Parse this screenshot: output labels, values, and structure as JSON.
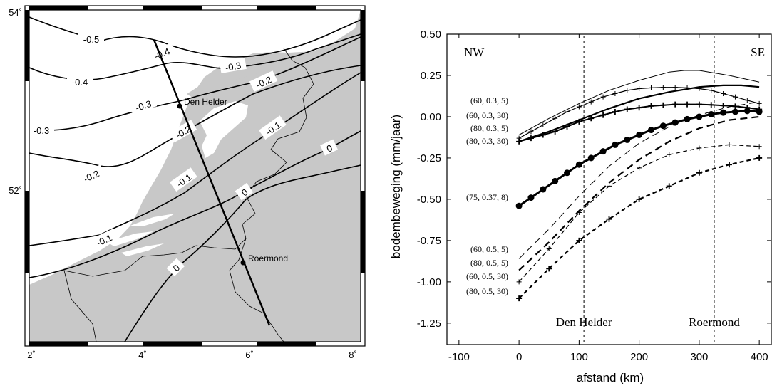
{
  "colors": {
    "land": "#c8c8c8",
    "sea": "#ffffff",
    "ink": "#000000"
  },
  "map": {
    "lat_labels": [
      "54˚",
      "52˚"
    ],
    "lon_labels": [
      "2˚",
      "4˚",
      "6˚",
      "8˚"
    ],
    "contours": [
      {
        "label": "-0.5",
        "value": -0.5
      },
      {
        "label": "-0.4",
        "value": -0.4
      },
      {
        "label": "-0.4",
        "value": -0.4
      },
      {
        "label": "-0.3",
        "value": -0.3
      },
      {
        "label": "-0.3",
        "value": -0.3
      },
      {
        "label": "-0.3",
        "value": -0.3
      },
      {
        "label": "-0.2",
        "value": -0.2
      },
      {
        "label": "-0.2",
        "value": -0.2
      },
      {
        "label": "-0.2",
        "value": -0.2
      },
      {
        "label": "-0.1",
        "value": -0.1
      },
      {
        "label": "-0.1",
        "value": -0.1
      },
      {
        "label": "-0.1",
        "value": -0.1
      },
      {
        "label": "0",
        "value": 0
      },
      {
        "label": "0",
        "value": 0
      },
      {
        "label": "0",
        "value": 0
      }
    ],
    "cities": [
      {
        "name": "Den Helder",
        "lon": 4.75,
        "lat": 52.95
      },
      {
        "name": "Roermond",
        "lon": 5.98,
        "lat": 51.19
      }
    ],
    "profile": {
      "start": {
        "lon": 4.4,
        "lat": 53.85
      },
      "end": {
        "lon": 6.4,
        "lat": 50.8
      }
    }
  },
  "chart_data": {
    "type": "line",
    "title": "",
    "xlabel": "afstand (km)",
    "ylabel": "bodembeweging (mm/jaar)",
    "xlim": [
      -120,
      420
    ],
    "ylim": [
      -1.38,
      0.5
    ],
    "xticks": [
      -100,
      0,
      100,
      200,
      300,
      400
    ],
    "yticks": [
      0.5,
      0.25,
      0.0,
      -0.25,
      -0.5,
      -0.75,
      -1.0,
      -1.25
    ],
    "xtick_labels": [
      "-100",
      "0",
      "100",
      "200",
      "300",
      "400"
    ],
    "ytick_labels": [
      "0.50",
      "0.25",
      "0.00",
      "-0.25",
      "-0.50",
      "-0.75",
      "-1.00",
      "-1.25"
    ],
    "direction_labels": {
      "left": "NW",
      "right": "SE"
    },
    "vertical_markers": [
      {
        "x": 108,
        "label": "Den Helder"
      },
      {
        "x": 325,
        "label": "Roermond"
      }
    ],
    "series": [
      {
        "name": "(60, 0.3, 5)",
        "style": "thin",
        "x": [
          0,
          50,
          100,
          150,
          200,
          250,
          275,
          300,
          350,
          400
        ],
        "y": [
          -0.11,
          -0.01,
          0.08,
          0.16,
          0.22,
          0.27,
          0.28,
          0.28,
          0.25,
          0.21
        ]
      },
      {
        "name": "(60, 0.3, 30)",
        "style": "plus",
        "x": [
          0,
          20,
          40,
          60,
          80,
          100,
          120,
          140,
          160,
          180,
          200,
          220,
          240,
          260,
          280,
          300,
          320,
          340,
          360,
          380,
          400
        ],
        "y": [
          -0.13,
          -0.09,
          -0.05,
          -0.01,
          0.03,
          0.06,
          0.09,
          0.12,
          0.14,
          0.16,
          0.17,
          0.175,
          0.178,
          0.178,
          0.175,
          0.17,
          0.16,
          0.14,
          0.12,
          0.1,
          0.08
        ]
      },
      {
        "name": "(80, 0.3, 5)",
        "style": "thick",
        "x": [
          0,
          50,
          100,
          150,
          200,
          250,
          300,
          340,
          370,
          400
        ],
        "y": [
          -0.15,
          -0.09,
          -0.02,
          0.05,
          0.11,
          0.15,
          0.18,
          0.19,
          0.19,
          0.18
        ]
      },
      {
        "name": "(80, 0.3, 30)",
        "style": "plus-bold",
        "x": [
          0,
          20,
          40,
          60,
          80,
          100,
          120,
          140,
          160,
          180,
          200,
          220,
          240,
          260,
          280,
          300,
          320,
          340,
          360,
          380,
          400
        ],
        "y": [
          -0.15,
          -0.13,
          -0.11,
          -0.09,
          -0.06,
          -0.03,
          -0.01,
          0.01,
          0.03,
          0.045,
          0.055,
          0.065,
          0.07,
          0.075,
          0.075,
          0.075,
          0.072,
          0.068,
          0.063,
          0.055,
          0.045
        ]
      },
      {
        "name": "(75, 0.37, 8)",
        "style": "dots",
        "x": [
          0,
          20,
          40,
          60,
          80,
          100,
          120,
          140,
          160,
          180,
          200,
          220,
          240,
          260,
          280,
          300,
          320,
          340,
          360,
          380,
          400
        ],
        "y": [
          -0.54,
          -0.49,
          -0.44,
          -0.39,
          -0.34,
          -0.29,
          -0.25,
          -0.21,
          -0.17,
          -0.14,
          -0.11,
          -0.08,
          -0.055,
          -0.035,
          -0.015,
          0.0,
          0.015,
          0.025,
          0.03,
          0.035,
          0.03
        ]
      },
      {
        "name": "(60, 0.5, 5)",
        "style": "dash-thin",
        "x": [
          0,
          50,
          100,
          150,
          200,
          250,
          300,
          350,
          400
        ],
        "y": [
          -0.86,
          -0.68,
          -0.48,
          -0.3,
          -0.16,
          -0.06,
          0.01,
          0.06,
          0.09
        ]
      },
      {
        "name": "(80, 0.5, 5)",
        "style": "dash-thick",
        "x": [
          0,
          50,
          100,
          150,
          200,
          250,
          300,
          350,
          400
        ],
        "y": [
          -0.93,
          -0.76,
          -0.57,
          -0.4,
          -0.26,
          -0.15,
          -0.07,
          -0.02,
          0.0
        ]
      },
      {
        "name": "(60, 0.5, 30)",
        "style": "dash-plus",
        "x": [
          0,
          50,
          100,
          150,
          200,
          250,
          300,
          350,
          400
        ],
        "y": [
          -1.0,
          -0.8,
          -0.58,
          -0.42,
          -0.31,
          -0.23,
          -0.19,
          -0.17,
          -0.18
        ]
      },
      {
        "name": "(80, 0.5, 30)",
        "style": "dash-plus-bold",
        "x": [
          0,
          50,
          100,
          150,
          200,
          250,
          300,
          350,
          400
        ],
        "y": [
          -1.1,
          -0.92,
          -0.75,
          -0.62,
          -0.5,
          -0.42,
          -0.34,
          -0.29,
          -0.25
        ]
      }
    ]
  }
}
